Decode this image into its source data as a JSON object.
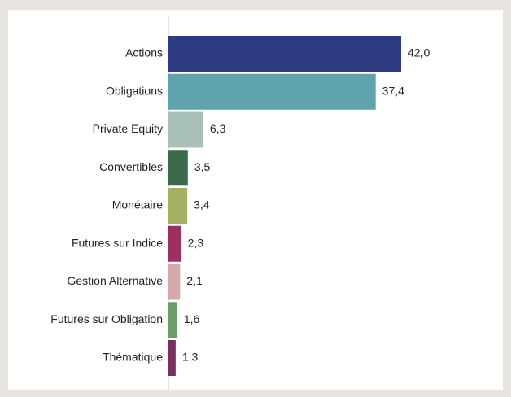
{
  "chart_data": {
    "type": "hbar",
    "categories": [
      "Actions",
      "Obligations",
      "Private Equity",
      "Convertibles",
      "Monétaire",
      "Futures sur Indice",
      "Gestion Alternative",
      "Futures sur Obligation",
      "Thématique"
    ],
    "values": [
      42.0,
      37.4,
      6.3,
      3.5,
      3.4,
      2.3,
      2.1,
      1.6,
      1.3
    ],
    "value_labels": [
      "42,0",
      "37,4",
      "6,3",
      "3,5",
      "3,4",
      "2,3",
      "2,1",
      "1,6",
      "1,3"
    ],
    "colors": [
      "#2e3a82",
      "#5fa3ae",
      "#a9c0b6",
      "#3b6a4b",
      "#a4b062",
      "#9d2f63",
      "#d3a9a8",
      "#6b9f66",
      "#7a2f5f"
    ],
    "xlim": [
      0,
      42
    ]
  }
}
